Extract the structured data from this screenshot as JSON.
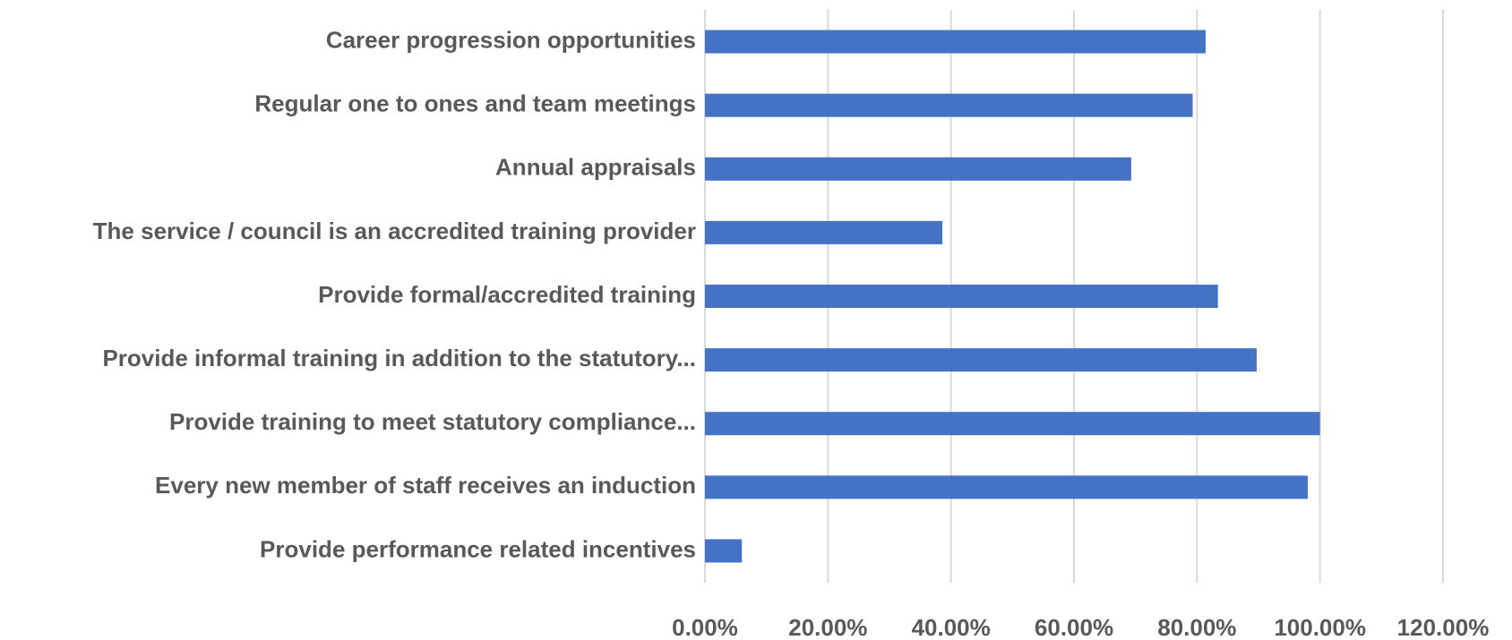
{
  "chart_data": {
    "type": "barh",
    "categories": [
      "Career progression opportunities",
      "Regular one to ones and team meetings",
      "Annual appraisals",
      "The service / council is an accredited training provider",
      "Provide formal/accredited training",
      "Provide informal training in addition to the statutory...",
      "Provide training to meet statutory compliance...",
      "Every new member of staff receives an induction",
      "Provide performance related incentives"
    ],
    "values": [
      81.4,
      79.3,
      69.3,
      38.6,
      83.4,
      89.7,
      100,
      98.0,
      6.0
    ],
    "color": "#4472c4",
    "xlim": [
      0,
      120
    ],
    "xticks": [
      {
        "value": 0,
        "label": "0.00%"
      },
      {
        "value": 20,
        "label": "20.00%"
      },
      {
        "value": 40,
        "label": "40.00%"
      },
      {
        "value": 60,
        "label": "60.00%"
      },
      {
        "value": 80,
        "label": "80.00%"
      },
      {
        "value": 100,
        "label": "100.00%"
      },
      {
        "value": 120,
        "label": "120.00%"
      }
    ],
    "grid": true
  }
}
